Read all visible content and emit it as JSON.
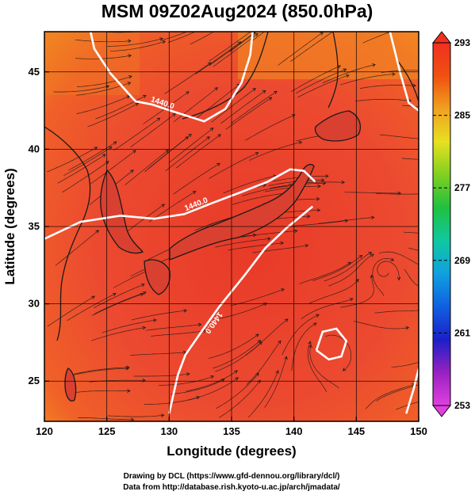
{
  "chart_data": {
    "type": "heatmap",
    "title": "MSM 09Z02Aug2024 (850.0hPa)",
    "xlabel": "Longitude (degrees)",
    "ylabel": "Latitude  (degrees)",
    "xlim": [
      120,
      150
    ],
    "ylim": [
      22.4,
      47.6
    ],
    "x_ticks": [
      120,
      125,
      130,
      135,
      140,
      145,
      150
    ],
    "y_ticks": [
      25,
      30,
      35,
      40,
      45
    ],
    "grid": true,
    "field": "temperature",
    "colorbar": {
      "range": [
        253,
        293
      ],
      "ticks": [
        253,
        261,
        269,
        277,
        285,
        293
      ],
      "colors": [
        "#e040e0",
        "#9a20c0",
        "#1a20c8",
        "#1060e0",
        "#10a0e0",
        "#10c8a0",
        "#20c040",
        "#80d020",
        "#e8e020",
        "#f0a020",
        "#f05010",
        "#f03020"
      ],
      "placement": "right"
    },
    "contours": [
      {
        "value": 1440.0,
        "label": "1440.0",
        "points": [
          [
            123.7,
            47.6
          ],
          [
            124.0,
            46.5
          ],
          [
            125.3,
            44.9
          ],
          [
            127.3,
            43.1
          ],
          [
            128.6,
            42.9
          ],
          [
            130.1,
            42.5
          ],
          [
            132.8,
            41.8
          ],
          [
            134.5,
            42.6
          ],
          [
            135.8,
            44.3
          ],
          [
            136.5,
            46.1
          ],
          [
            136.7,
            47.6
          ]
        ]
      },
      {
        "value": 1440.0,
        "label": "1440.0",
        "points": [
          [
            120.0,
            34.2
          ],
          [
            122.9,
            35.3
          ],
          [
            126.1,
            35.7
          ],
          [
            128.8,
            35.5
          ],
          [
            131.2,
            35.8
          ],
          [
            133.4,
            36.5
          ],
          [
            135.7,
            37.2
          ],
          [
            137.9,
            37.9
          ],
          [
            139.7,
            38.7
          ],
          [
            140.8,
            38.6
          ],
          [
            141.7,
            37.9
          ]
        ]
      },
      {
        "value": 1440.0,
        "label": "1440.0",
        "points": [
          [
            141.5,
            36.3
          ],
          [
            139.4,
            34.9
          ],
          [
            137.7,
            33.6
          ],
          [
            136.0,
            31.8
          ],
          [
            134.0,
            29.8
          ],
          [
            132.5,
            28.1
          ],
          [
            131.3,
            26.7
          ],
          [
            130.7,
            25.4
          ],
          [
            130.3,
            24.0
          ],
          [
            130.0,
            22.9
          ]
        ]
      },
      {
        "value": 1440.0,
        "label": "",
        "points": [
          [
            141.8,
            27.0
          ],
          [
            142.3,
            28.2
          ],
          [
            143.4,
            28.4
          ],
          [
            144.2,
            27.6
          ],
          [
            143.8,
            26.6
          ],
          [
            142.8,
            26.4
          ],
          [
            141.8,
            27.0
          ]
        ]
      },
      {
        "value": 1440.0,
        "label": "",
        "points": [
          [
            147.7,
            47.6
          ],
          [
            148.5,
            45.0
          ],
          [
            149.2,
            43.0
          ],
          [
            150.0,
            42.5
          ]
        ]
      },
      {
        "value": 1440.0,
        "label": "",
        "points": [
          [
            149.0,
            22.9
          ],
          [
            149.6,
            24.5
          ],
          [
            150.0,
            25.8
          ]
        ]
      }
    ]
  },
  "credits": {
    "line1": "Drawing by DCL (https://www.gfd-dennou.org/library/dcl/)",
    "line2": "Data from http://database.rish.kyoto-u.ac.jp/arch/jmadata/"
  }
}
